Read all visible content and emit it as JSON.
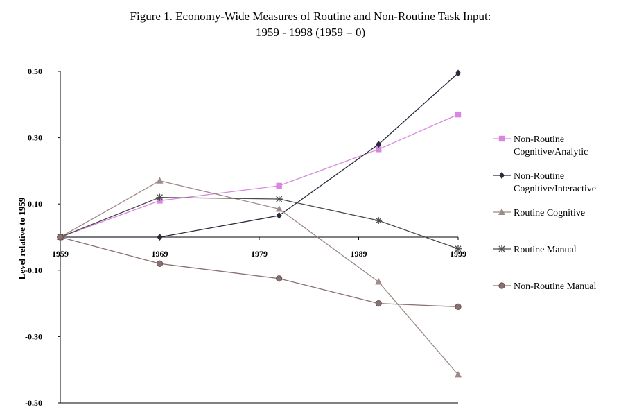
{
  "title": {
    "line1": "Figure 1. Economy-Wide Measures of Routine and Non-Routine Task Input:",
    "line2": "1959 - 1998 (1959 = 0)"
  },
  "chart_data": {
    "type": "line",
    "title": "Figure 1. Economy-Wide Measures of Routine and Non-Routine Task Input: 1959 - 1998 (1959 = 0)",
    "xlabel": "",
    "ylabel": "Level relative to 1959",
    "x_ticks": [
      "1959",
      "1969",
      "1979",
      "1989",
      "1999"
    ],
    "y_ticks": [
      "0.50",
      "0.30",
      "0.10",
      "-0.10",
      "-0.30",
      "-0.50"
    ],
    "xlim": [
      1959,
      1999
    ],
    "ylim": [
      -0.5,
      0.5
    ],
    "x": [
      1959,
      1969,
      1981,
      1991,
      1999
    ],
    "grid": false,
    "legend_position": "right",
    "series": [
      {
        "name": "Non-Routine Cognitive/Analytic",
        "legend_lines": [
          "Non-Routine",
          "Cognitive/Analytic"
        ],
        "color": "#d986e0",
        "marker": "square",
        "values": [
          0.0,
          0.11,
          0.155,
          0.265,
          0.37
        ]
      },
      {
        "name": "Non-Routine Cognitive/Interactive",
        "legend_lines": [
          "Non-Routine",
          "Cognitive/Interactive"
        ],
        "color": "#2a2a3c",
        "marker": "diamond",
        "values": [
          0.0,
          0.0,
          0.065,
          0.28,
          0.495
        ]
      },
      {
        "name": "Routine Cognitive",
        "legend_lines": [
          "Routine Cognitive"
        ],
        "color": "#9e8a86",
        "marker": "triangle",
        "values": [
          0.0,
          0.17,
          0.085,
          -0.135,
          -0.415
        ]
      },
      {
        "name": "Routine Manual",
        "legend_lines": [
          "Routine Manual"
        ],
        "color": "#4a4a4a",
        "marker": "asterisk",
        "values": [
          0.0,
          0.12,
          0.115,
          0.05,
          -0.035
        ]
      },
      {
        "name": "Non-Routine Manual",
        "legend_lines": [
          "Non-Routine Manual"
        ],
        "color": "#8a7070",
        "marker": "circle",
        "values": [
          0.0,
          -0.08,
          -0.125,
          -0.2,
          -0.21
        ]
      }
    ]
  }
}
